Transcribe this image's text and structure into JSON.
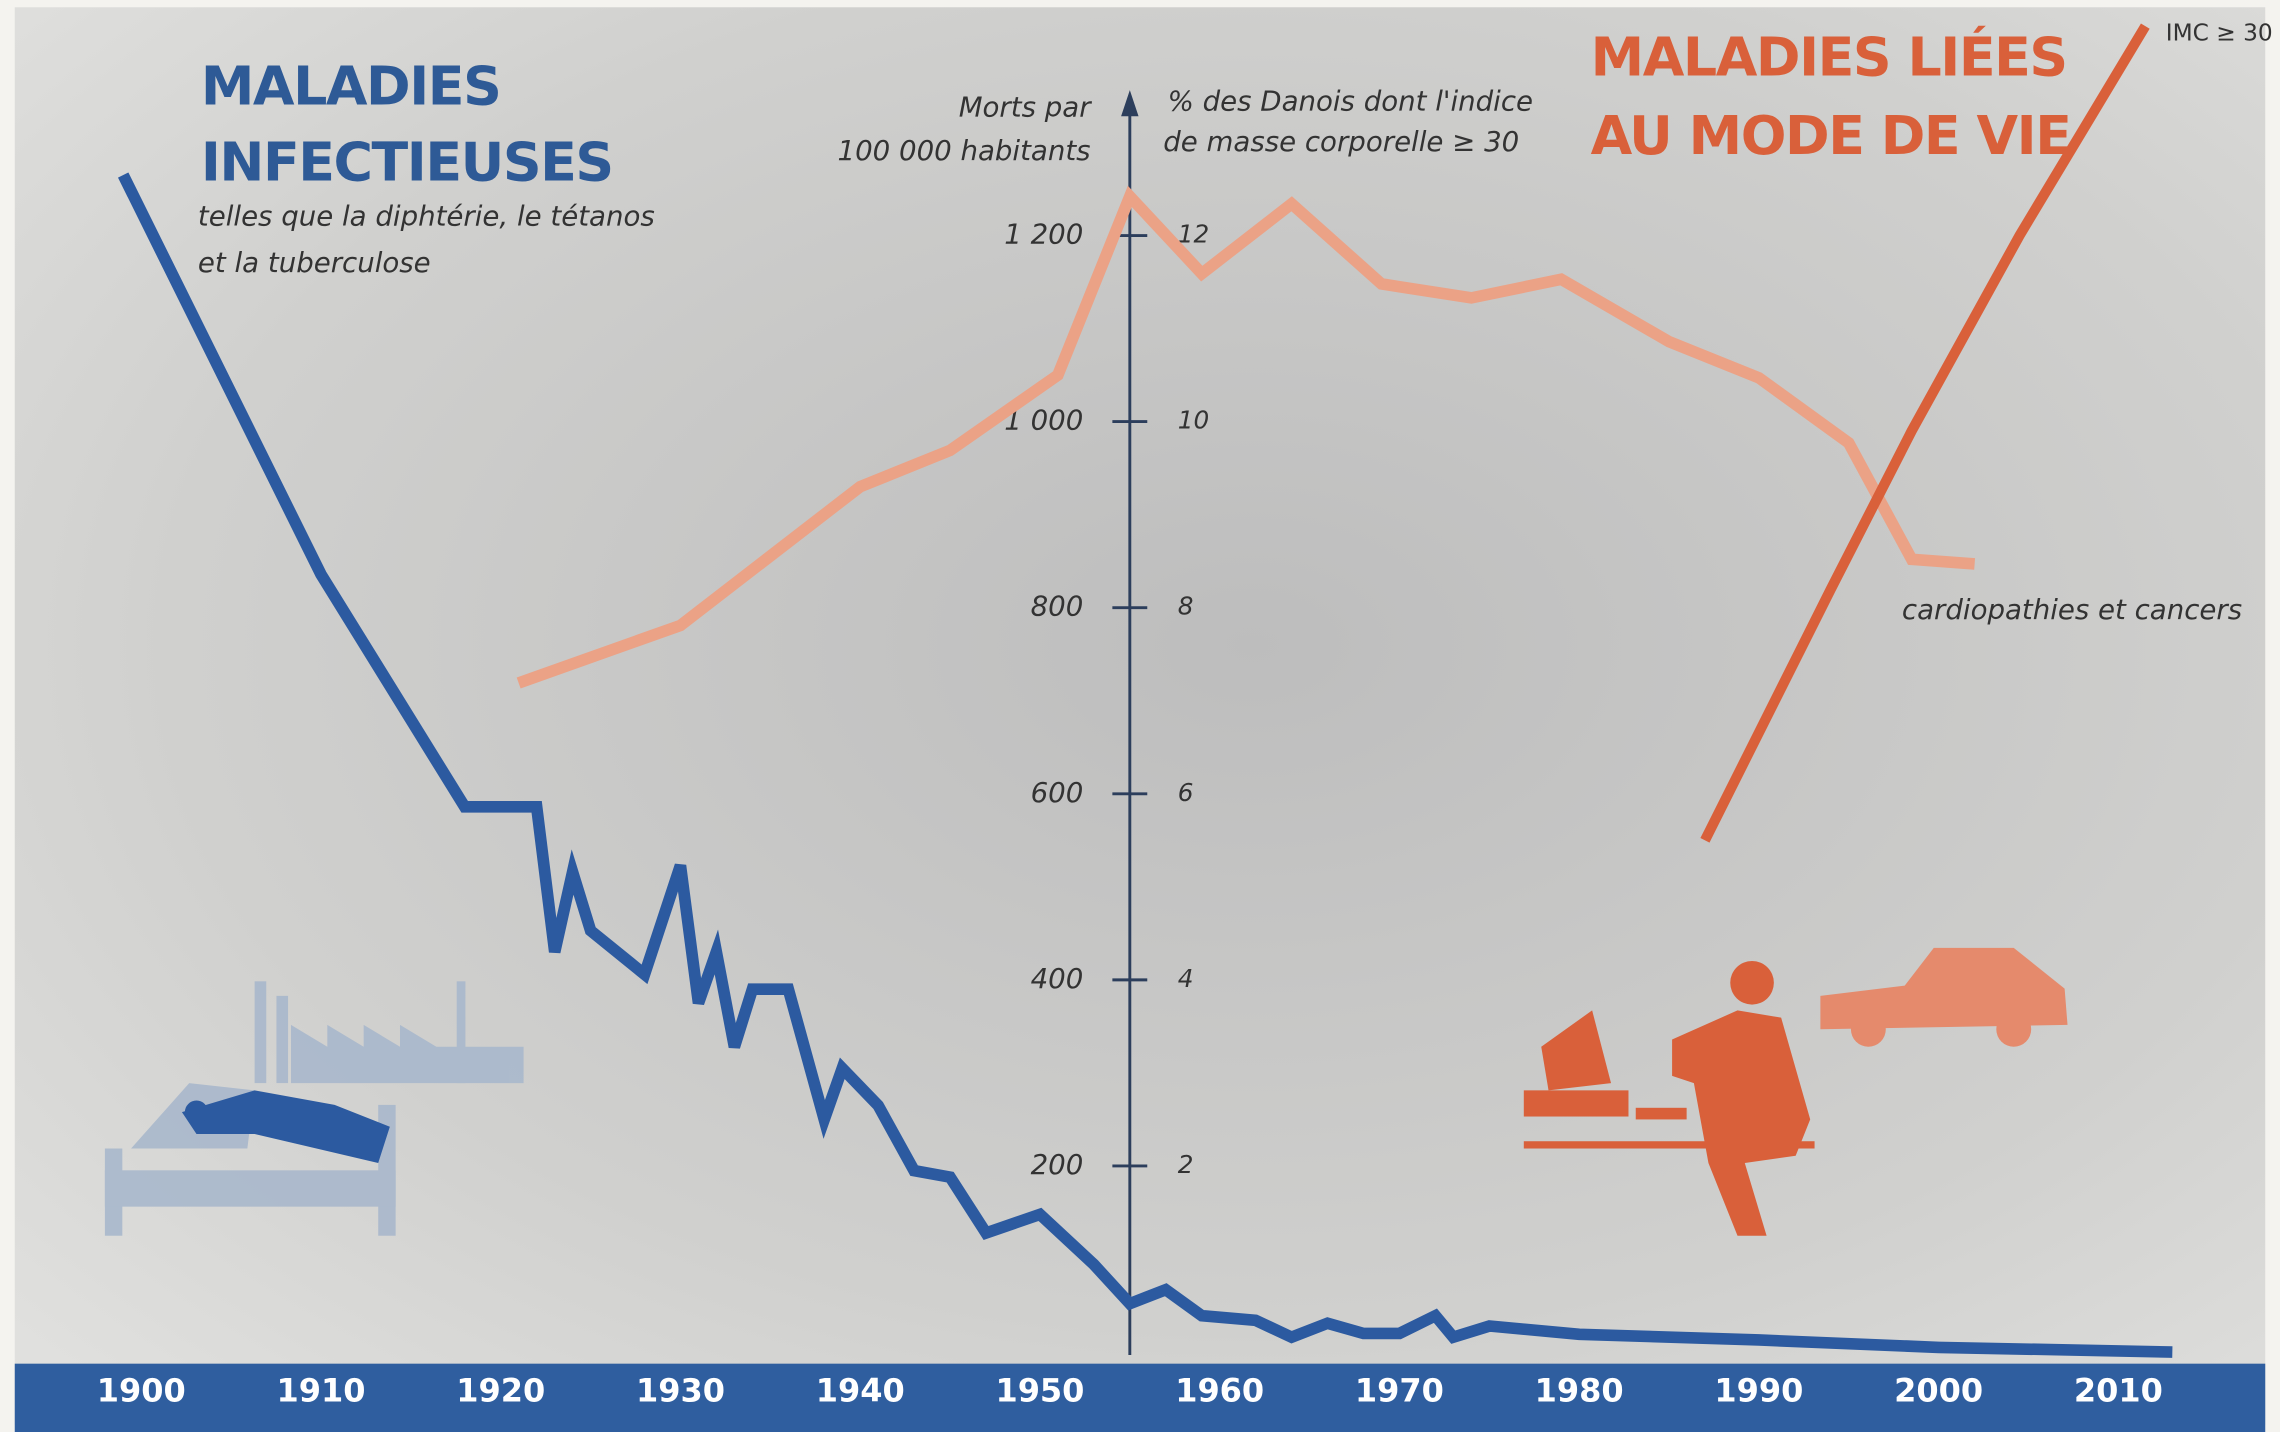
{
  "chart_data": {
    "type": "line",
    "left_title": [
      "MALADIES",
      "INFECTIEUSES"
    ],
    "left_subtitle": [
      "telles que la diphtérie, le tétanos",
      "et la tuberculose"
    ],
    "right_title": [
      "MALADIES LIÉES",
      "AU MODE DE VIE"
    ],
    "ylabel": [
      "Morts par",
      "100 000 habitants"
    ],
    "y2label": [
      "% des Danois dont l'indice",
      "de masse corporelle ≥ 30"
    ],
    "xlim": [
      1900,
      2010
    ],
    "xticks": [
      1900,
      1910,
      1920,
      1930,
      1940,
      1950,
      1960,
      1970,
      1980,
      1990,
      2000,
      2010
    ],
    "ylim": [
      0,
      1425
    ],
    "yticks": [
      200,
      400,
      600,
      800,
      {
        "value": 1000,
        "label": "1 000"
      },
      {
        "value": 1200,
        "label": "1 200"
      }
    ],
    "y2lim": [
      0,
      14.25
    ],
    "y2ticks": [
      2,
      4,
      6,
      8,
      10,
      12
    ],
    "series": [
      {
        "color": "#2c5aa0",
        "x": [
          1899,
          1910,
          1918,
          1922,
          1923,
          1924,
          1925,
          1928,
          1930,
          1931,
          1932,
          1933,
          1934,
          1936,
          1938,
          1939,
          1941,
          1943,
          1945,
          1947,
          1950,
          1953,
          1955,
          1957,
          1959,
          1962,
          1964,
          1966,
          1968,
          1970,
          1972,
          1973,
          1975,
          1980,
          1990,
          2000,
          2013
        ],
        "values": [
          1265,
          836,
          586,
          586,
          430,
          516,
          453,
          406,
          523,
          375,
          430,
          328,
          390,
          390,
          250,
          305,
          265,
          195,
          188,
          128,
          148,
          94,
          52,
          67,
          39,
          34,
          16,
          31,
          20,
          20,
          39,
          16,
          28,
          19,
          13,
          5,
          0
        ]
      },
      {
        "name": "cardiopathies et cancers",
        "color": "#eba286",
        "x": [
          1921,
          1930,
          1940,
          1945,
          1951,
          1955,
          1959,
          1964,
          1969,
          1974,
          1979,
          1985,
          1990,
          1995,
          1998.5,
          2002
        ],
        "values": [
          719,
          781,
          930,
          969,
          1050,
          1242,
          1159,
          1234,
          1148,
          1133,
          1153,
          1086,
          1047,
          977,
          852,
          847
        ]
      },
      {
        "name": "IMC ≥ 30",
        "color": "#d9603a",
        "axis": "y2",
        "x": [
          1987,
          1994,
          1998.5,
          2004.5,
          2011.5
        ],
        "values": [
          5.5,
          8.2,
          9.9,
          12,
          14.25
        ]
      }
    ]
  }
}
